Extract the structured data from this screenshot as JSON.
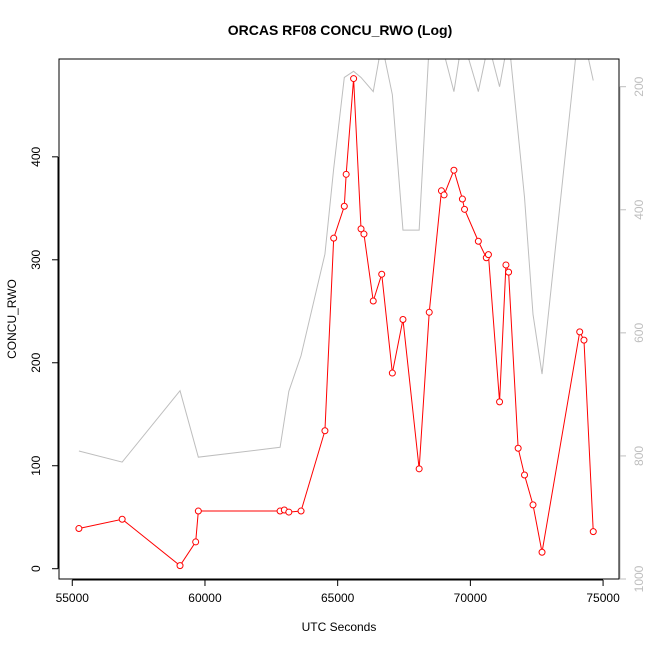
{
  "chart_data": {
    "type": "line",
    "title": "ORCAS RF08 CONCU_RWO (Log)",
    "xlabel": "UTC Seconds",
    "ylabel": "CONCU_RWO",
    "xlim": [
      54500,
      75600
    ],
    "ylim": [
      -10,
      495
    ],
    "x_ticks": [
      "55000",
      "60000",
      "65000",
      "70000",
      "75000"
    ],
    "y_ticks": [
      "0",
      "100",
      "200",
      "300",
      "400"
    ],
    "y2_ticks": [
      "200",
      "400",
      "600",
      "800",
      "1000"
    ],
    "y2lim": [
      1000,
      155
    ],
    "colors": {
      "series": "#ff0000",
      "secondary": "#bebebe"
    },
    "series": [
      {
        "axis": "left",
        "style": "line+points",
        "x": [
          55250,
          56880,
          59060,
          59650,
          59750,
          62830,
          62990,
          63160,
          63620,
          64520,
          64850,
          65250,
          65320,
          65600,
          65880,
          65990,
          66340,
          66660,
          67060,
          67460,
          68070,
          68450,
          68910,
          69010,
          69380,
          69700,
          69780,
          70300,
          70600,
          70680,
          71100,
          71340,
          71440,
          71800,
          72040,
          72360,
          72700,
          74120,
          74280,
          74630
        ],
        "y": [
          39,
          48,
          3,
          26,
          56,
          56,
          57,
          55,
          56,
          134,
          321,
          352,
          383,
          476,
          330,
          325,
          260,
          286,
          190,
          242,
          97,
          249,
          367,
          363,
          387,
          359,
          349,
          318,
          302,
          305,
          162,
          295,
          288,
          117,
          91,
          62,
          16,
          230,
          222,
          36
        ]
      },
      {
        "axis": "right",
        "style": "line",
        "x": [
          55250,
          56880,
          59060,
          59750,
          62830,
          63160,
          63620,
          64520,
          64850,
          65250,
          65600,
          65880,
          66340,
          66660,
          67060,
          67460,
          68070,
          68450,
          68910,
          69380,
          69700,
          70300,
          70680,
          71100,
          71440,
          72040,
          72360,
          72700,
          74120,
          74630
        ],
        "y": [
          792,
          810,
          694,
          802,
          786,
          695,
          637,
          472,
          333,
          185,
          175,
          185,
          208,
          130,
          213,
          433,
          433,
          130,
          130,
          208,
          120,
          208,
          130,
          200,
          120,
          380,
          570,
          667,
          90,
          190
        ]
      }
    ]
  }
}
